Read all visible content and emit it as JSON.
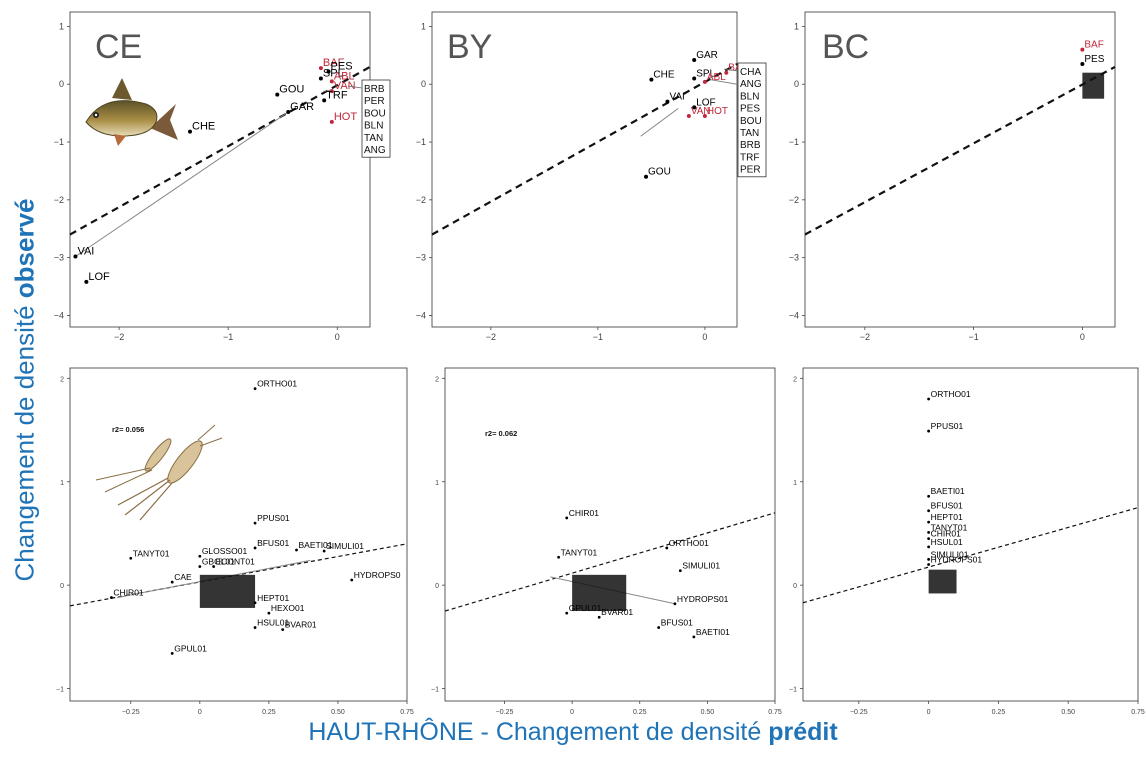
{
  "figure": {
    "ylabel_prefix": "Changement de densité ",
    "ylabel_bold": "observé",
    "xlabel_prefix": "HAUT-RHÔNE  - Changement de densité ",
    "xlabel_bold": "prédit"
  },
  "colors": {
    "axis_label": "#1f73b7",
    "highlight_species": "#c0283b",
    "points": "#000000"
  },
  "chart_data": [
    {
      "type": "scatter",
      "title": "CE",
      "xlim": [
        -2.45,
        0.3
      ],
      "ylim": [
        -4.2,
        1.25
      ],
      "xticks": [
        -2,
        -1,
        0
      ],
      "yticks": [
        1,
        0,
        -1,
        -2,
        -3,
        -4
      ],
      "trend_line": {
        "style": "dashed",
        "points": [
          [
            -2.45,
            -2.6
          ],
          [
            0.3,
            0.3
          ]
        ]
      },
      "connectors": [
        [
          [
            -2.4,
            -2.98
          ],
          [
            -0.45,
            -0.48
          ]
        ],
        [
          [
            -0.12,
            -0.12
          ],
          [
            -0.05,
            -0.1
          ]
        ]
      ],
      "points": [
        {
          "label": "BAF",
          "x": -0.15,
          "y": 0.28,
          "highlight": true
        },
        {
          "label": "PES",
          "x": -0.08,
          "y": 0.22,
          "highlight": false
        },
        {
          "label": "SPL",
          "x": -0.15,
          "y": 0.1,
          "highlight": false
        },
        {
          "label": "ABL",
          "x": -0.05,
          "y": 0.05,
          "highlight": true
        },
        {
          "label": "GOU",
          "x": -0.55,
          "y": -0.18,
          "highlight": false
        },
        {
          "label": "VAN",
          "x": -0.05,
          "y": -0.12,
          "highlight": true
        },
        {
          "label": "TRF",
          "x": -0.12,
          "y": -0.28,
          "highlight": false
        },
        {
          "label": "GAR",
          "x": -0.45,
          "y": -0.48,
          "highlight": false
        },
        {
          "label": "HOT",
          "x": -0.05,
          "y": -0.65,
          "highlight": true
        },
        {
          "label": "CHE",
          "x": -1.35,
          "y": -0.82,
          "highlight": false
        },
        {
          "label": "VAI",
          "x": -2.4,
          "y": -2.98,
          "highlight": false
        },
        {
          "label": "LOF",
          "x": -2.3,
          "y": -3.42,
          "highlight": false
        }
      ],
      "label_box": [
        "BRB",
        "PER",
        "BOU",
        "BLN",
        "TAN",
        "ANG"
      ]
    },
    {
      "type": "scatter",
      "title": "BY",
      "xlim": [
        -2.55,
        0.3
      ],
      "ylim": [
        -4.2,
        1.25
      ],
      "xticks": [
        -2,
        -1,
        0
      ],
      "yticks": [
        1,
        0,
        -1,
        -2,
        -3,
        -4
      ],
      "trend_line": {
        "style": "dashed",
        "points": [
          [
            -2.55,
            -2.6
          ],
          [
            0.3,
            0.35
          ]
        ]
      },
      "connectors": [
        [
          [
            -0.6,
            -0.9
          ],
          [
            -0.25,
            -0.42
          ]
        ],
        [
          [
            0.05,
            0.08
          ],
          [
            0.3,
            0.0
          ]
        ]
      ],
      "points": [
        {
          "label": "GAR",
          "x": -0.1,
          "y": 0.42,
          "highlight": false
        },
        {
          "label": "BAF",
          "x": 0.2,
          "y": 0.2,
          "highlight": true
        },
        {
          "label": "CHE",
          "x": -0.5,
          "y": 0.08,
          "highlight": false
        },
        {
          "label": "SPL",
          "x": -0.1,
          "y": 0.1,
          "highlight": false
        },
        {
          "label": "ABL",
          "x": 0.0,
          "y": 0.04,
          "highlight": true
        },
        {
          "label": "VAI",
          "x": -0.35,
          "y": -0.3,
          "highlight": false
        },
        {
          "label": "LOF",
          "x": -0.1,
          "y": -0.4,
          "highlight": false
        },
        {
          "label": "VAN",
          "x": -0.15,
          "y": -0.55,
          "highlight": true
        },
        {
          "label": "HOT",
          "x": 0.0,
          "y": -0.55,
          "highlight": true
        },
        {
          "label": "GOU",
          "x": -0.55,
          "y": -1.6,
          "highlight": false
        }
      ],
      "label_box": [
        "CHA",
        "ANG",
        "BLN",
        "PES",
        "BOU",
        "TAN",
        "BRB",
        "TRF",
        "PER"
      ]
    },
    {
      "type": "scatter",
      "title": "BC",
      "xlim": [
        -2.55,
        0.3
      ],
      "ylim": [
        -4.2,
        1.25
      ],
      "xticks": [
        -2,
        -1,
        0
      ],
      "yticks": [
        1,
        0,
        -1,
        -2,
        -3,
        -4
      ],
      "trend_line": {
        "style": "dashed",
        "points": [
          [
            -2.55,
            -2.6
          ],
          [
            0.3,
            0.3
          ]
        ]
      },
      "connectors": [],
      "points": [
        {
          "label": "BAF",
          "x": 0.0,
          "y": 0.6,
          "highlight": true
        },
        {
          "label": "PES",
          "x": 0.0,
          "y": 0.35,
          "highlight": false
        }
      ],
      "point_cluster": {
        "x": [
          0.0,
          0.2
        ],
        "y": [
          -0.25,
          0.2
        ]
      }
    },
    {
      "type": "scatter",
      "annotation": "r2=  0.056",
      "xlim": [
        -0.47,
        0.75
      ],
      "ylim": [
        -1.12,
        2.1
      ],
      "xticks": [
        -0.25,
        0.0,
        0.25,
        0.5,
        0.75
      ],
      "yticks": [
        2,
        1,
        0,
        -1
      ],
      "trend_line": {
        "style": "dashed",
        "points": [
          [
            -0.47,
            -0.2
          ],
          [
            0.75,
            0.4
          ]
        ]
      },
      "connectors": [
        [
          [
            -0.3,
            -0.12
          ],
          [
            0.4,
            0.24
          ]
        ]
      ],
      "points": [
        {
          "label": "ORTHO01",
          "x": 0.2,
          "y": 1.9
        },
        {
          "label": "PPUS01",
          "x": 0.2,
          "y": 0.6
        },
        {
          "label": "BFUS01",
          "x": 0.2,
          "y": 0.36
        },
        {
          "label": "BAETI01",
          "x": 0.35,
          "y": 0.34
        },
        {
          "label": "SIMULI01",
          "x": 0.45,
          "y": 0.33
        },
        {
          "label": "TANYT01",
          "x": -0.25,
          "y": 0.26
        },
        {
          "label": "GLOSSO01",
          "x": 0.0,
          "y": 0.28
        },
        {
          "label": "GBOL01",
          "x": 0.0,
          "y": 0.18
        },
        {
          "label": "ECONT01",
          "x": 0.05,
          "y": 0.18
        },
        {
          "label": "HYDROPS0",
          "x": 0.55,
          "y": 0.05
        },
        {
          "label": "CAE",
          "x": -0.1,
          "y": 0.03
        },
        {
          "label": "CHIR01",
          "x": -0.32,
          "y": -0.12
        },
        {
          "label": "HEPT01",
          "x": 0.2,
          "y": -0.17
        },
        {
          "label": "HEXO01",
          "x": 0.25,
          "y": -0.27
        },
        {
          "label": "HSUL01",
          "x": 0.2,
          "y": -0.41
        },
        {
          "label": "BVAR01",
          "x": 0.3,
          "y": -0.43
        },
        {
          "label": "GPUL01",
          "x": -0.1,
          "y": -0.66
        }
      ],
      "point_cluster": {
        "x": [
          0.0,
          0.2
        ],
        "y": [
          -0.22,
          0.1
        ]
      }
    },
    {
      "type": "scatter",
      "annotation": "r2=  0.062",
      "xlim": [
        -0.47,
        0.75
      ],
      "ylim": [
        -1.12,
        2.1
      ],
      "xticks": [
        -0.25,
        0.0,
        0.25,
        0.5,
        0.75
      ],
      "yticks": [
        2,
        1,
        0,
        -1
      ],
      "trend_line": {
        "style": "dashed",
        "points": [
          [
            -0.47,
            -0.25
          ],
          [
            0.75,
            0.7
          ]
        ]
      },
      "connectors": [
        [
          [
            -0.08,
            0.08
          ],
          [
            0.38,
            -0.18
          ]
        ]
      ],
      "points": [
        {
          "label": "CHIR01",
          "x": -0.02,
          "y": 0.65
        },
        {
          "label": "ORTHO01",
          "x": 0.35,
          "y": 0.36
        },
        {
          "label": "TANYT01",
          "x": -0.05,
          "y": 0.27
        },
        {
          "label": "SIMULI01",
          "x": 0.4,
          "y": 0.14
        },
        {
          "label": "HYDROPS01",
          "x": 0.38,
          "y": -0.18
        },
        {
          "label": "GPUL01",
          "x": -0.02,
          "y": -0.27
        },
        {
          "label": "BVAR01",
          "x": 0.1,
          "y": -0.31
        },
        {
          "label": "BFUS01",
          "x": 0.32,
          "y": -0.41
        },
        {
          "label": "BAETI01",
          "x": 0.45,
          "y": -0.5
        }
      ],
      "point_cluster": {
        "x": [
          0.0,
          0.2
        ],
        "y": [
          -0.25,
          0.1
        ]
      }
    },
    {
      "type": "scatter",
      "xlim": [
        -0.45,
        0.75
      ],
      "ylim": [
        -1.12,
        2.1
      ],
      "xticks": [
        -0.25,
        0.0,
        0.25,
        0.5,
        0.75
      ],
      "yticks": [
        2,
        1,
        0,
        -1
      ],
      "trend_line": {
        "style": "dashed",
        "points": [
          [
            -0.45,
            -0.17
          ],
          [
            0.75,
            0.75
          ]
        ]
      },
      "connectors": [],
      "points": [
        {
          "label": "ORTHO01",
          "x": 0.0,
          "y": 1.8
        },
        {
          "label": "PPUS01",
          "x": 0.0,
          "y": 1.49
        },
        {
          "label": "BAETI01",
          "x": 0.0,
          "y": 0.86
        },
        {
          "label": "BFUS01",
          "x": 0.0,
          "y": 0.72
        },
        {
          "label": "HEPT01",
          "x": 0.0,
          "y": 0.61
        },
        {
          "label": "TANYT01",
          "x": 0.0,
          "y": 0.51
        },
        {
          "label": "CHIR01",
          "x": 0.0,
          "y": 0.45
        },
        {
          "label": "HSUL01",
          "x": 0.0,
          "y": 0.37
        },
        {
          "label": "SIMULI01",
          "x": 0.0,
          "y": 0.25
        },
        {
          "label": "HYDROPS01",
          "x": 0.0,
          "y": 0.2
        }
      ],
      "point_cluster": {
        "x": [
          0.0,
          0.1
        ],
        "y": [
          -0.08,
          0.15
        ]
      }
    }
  ]
}
